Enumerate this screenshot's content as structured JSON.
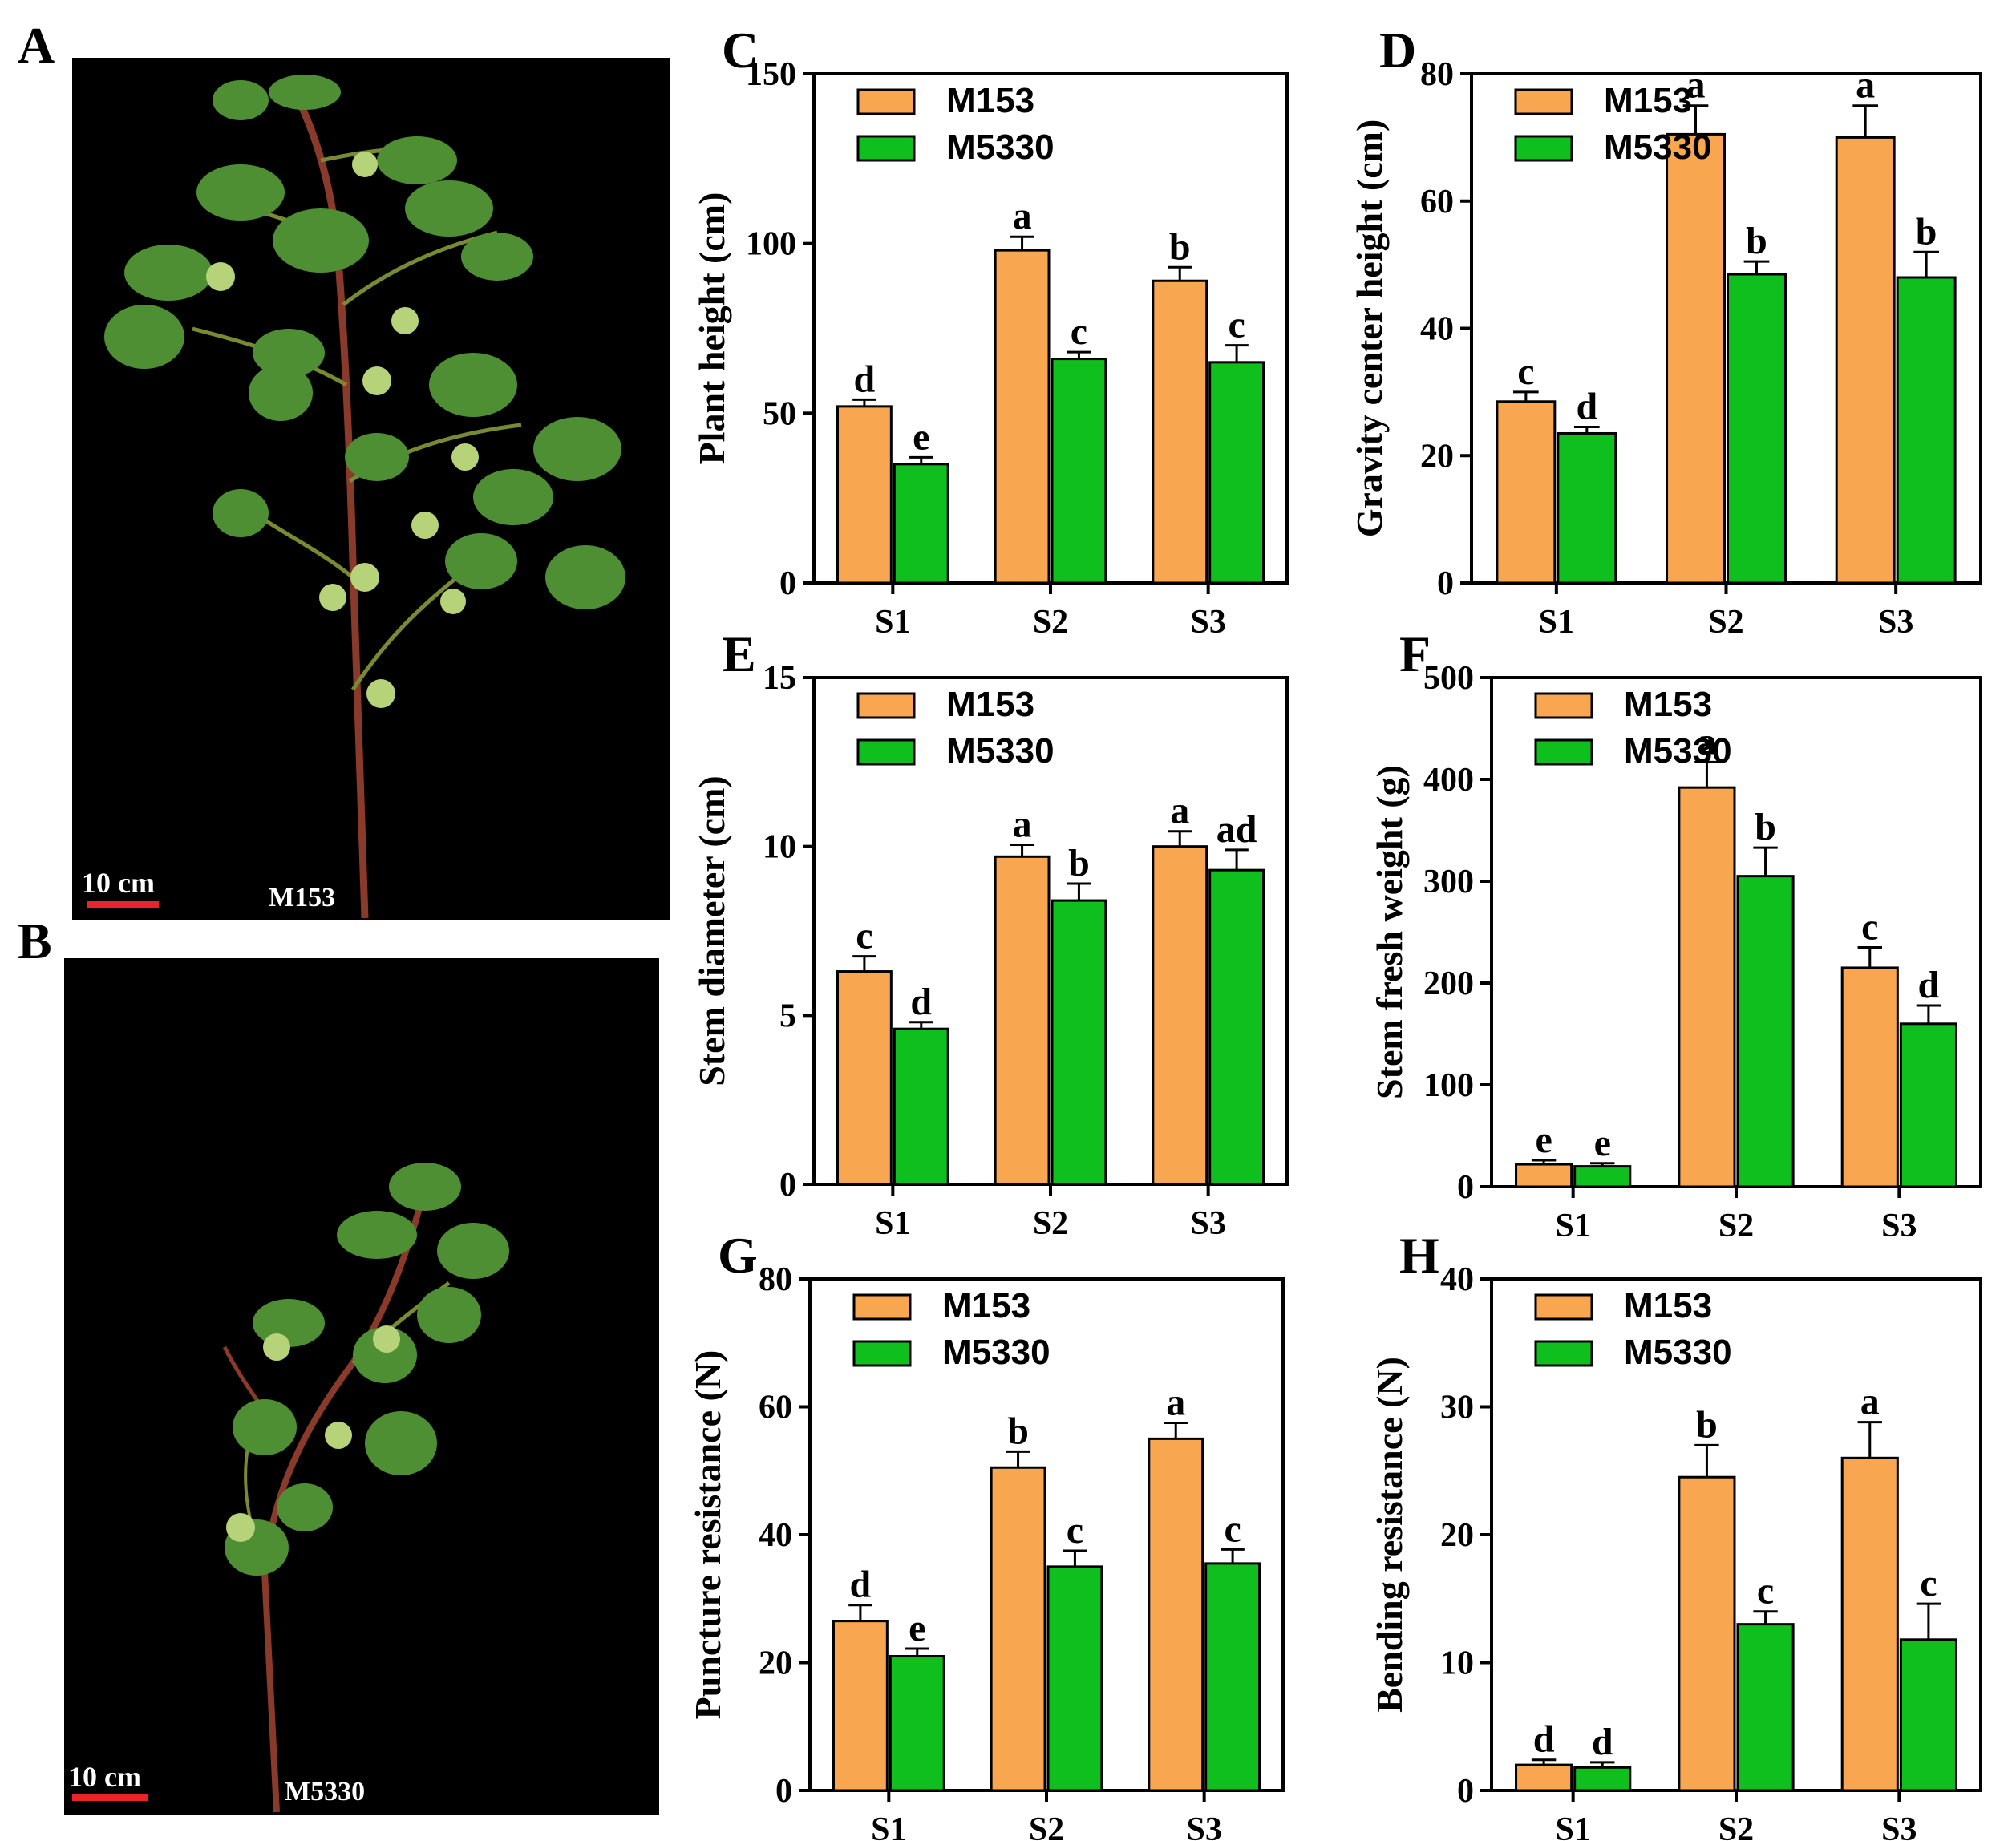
{
  "colors": {
    "M153": "#f8a64f",
    "M5330": "#0ebf1e",
    "axis": "#000000",
    "photo_bg": "#000000",
    "scale_bar": "#e8262a",
    "leaf": "#5a9a3a",
    "boll": "#b6d37a",
    "stem": "#8a3a2a"
  },
  "photos": [
    {
      "letter": "A",
      "scale_label": "10 cm",
      "variety": "M153"
    },
    {
      "letter": "B",
      "scale_label": "10 cm",
      "variety": "M5330"
    }
  ],
  "chart_data": [
    {
      "letter": "C",
      "type": "bar",
      "title": "",
      "ylabel": "Plant height (cm)",
      "xlabel": "",
      "categories": [
        "S1",
        "S2",
        "S3"
      ],
      "ylim": [
        0,
        150
      ],
      "yticks": [
        0,
        50,
        100,
        150
      ],
      "legend": [
        "M153",
        "M5330"
      ],
      "series": [
        {
          "name": "M153",
          "values": [
            52,
            98,
            89
          ],
          "errors": [
            2,
            4,
            4
          ],
          "letters": [
            "d",
            "a",
            "b"
          ]
        },
        {
          "name": "M5330",
          "values": [
            35,
            66,
            65
          ],
          "errors": [
            2,
            2,
            5
          ],
          "letters": [
            "e",
            "c",
            "c"
          ]
        }
      ]
    },
    {
      "letter": "D",
      "type": "bar",
      "title": "",
      "ylabel": "Gravity center height (cm)",
      "xlabel": "",
      "categories": [
        "S1",
        "S2",
        "S3"
      ],
      "ylim": [
        0,
        80
      ],
      "yticks": [
        0,
        20,
        40,
        60,
        80
      ],
      "legend": [
        "M153",
        "M5330"
      ],
      "series": [
        {
          "name": "M153",
          "values": [
            28.5,
            70.5,
            70
          ],
          "errors": [
            1.5,
            4.5,
            5
          ],
          "letters": [
            "c",
            "a",
            "a"
          ]
        },
        {
          "name": "M5330",
          "values": [
            23.5,
            48.5,
            48
          ],
          "errors": [
            1,
            2,
            4
          ],
          "letters": [
            "d",
            "b",
            "b"
          ]
        }
      ]
    },
    {
      "letter": "E",
      "type": "bar",
      "title": "",
      "ylabel": "Stem diameter (cm)",
      "xlabel": "",
      "categories": [
        "S1",
        "S2",
        "S3"
      ],
      "ylim": [
        0,
        15
      ],
      "yticks": [
        0,
        5,
        10,
        15
      ],
      "legend": [
        "M153",
        "M5330"
      ],
      "series": [
        {
          "name": "M153",
          "values": [
            6.3,
            9.7,
            10
          ],
          "errors": [
            0.45,
            0.35,
            0.45
          ],
          "letters": [
            "c",
            "a",
            "a"
          ]
        },
        {
          "name": "M5330",
          "values": [
            4.6,
            8.4,
            9.3
          ],
          "errors": [
            0.2,
            0.5,
            0.6
          ],
          "letters": [
            "d",
            "b",
            "ad"
          ]
        }
      ]
    },
    {
      "letter": "F",
      "type": "bar",
      "title": "",
      "ylabel": "Stem fresh weight (g)",
      "xlabel": "",
      "categories": [
        "S1",
        "S2",
        "S3"
      ],
      "ylim": [
        0,
        500
      ],
      "yticks": [
        0,
        100,
        200,
        300,
        400,
        500
      ],
      "legend": [
        "M153",
        "M5330"
      ],
      "series": [
        {
          "name": "M153",
          "values": [
            22,
            392,
            215
          ],
          "errors": [
            4,
            25,
            20
          ],
          "letters": [
            "e",
            "a",
            "c"
          ]
        },
        {
          "name": "M5330",
          "values": [
            20,
            305,
            160
          ],
          "errors": [
            3,
            28,
            18
          ],
          "letters": [
            "e",
            "b",
            "d"
          ]
        }
      ]
    },
    {
      "letter": "G",
      "type": "bar",
      "title": "",
      "ylabel": "Puncture resistance (N)",
      "xlabel": "",
      "categories": [
        "S1",
        "S2",
        "S3"
      ],
      "ylim": [
        0,
        80
      ],
      "yticks": [
        0,
        20,
        40,
        60,
        80
      ],
      "legend": [
        "M153",
        "M5330"
      ],
      "series": [
        {
          "name": "M153",
          "values": [
            26.5,
            50.5,
            55
          ],
          "errors": [
            2.5,
            2.5,
            2.5
          ],
          "letters": [
            "d",
            "b",
            "a"
          ]
        },
        {
          "name": "M5330",
          "values": [
            21,
            35,
            35.5
          ],
          "errors": [
            1.2,
            2.5,
            2.2
          ],
          "letters": [
            "e",
            "c",
            "c"
          ]
        }
      ]
    },
    {
      "letter": "H",
      "type": "bar",
      "title": "",
      "ylabel": "Bending resistance (N)",
      "xlabel": "",
      "categories": [
        "S1",
        "S2",
        "S3"
      ],
      "ylim": [
        0,
        40
      ],
      "yticks": [
        0,
        10,
        20,
        30,
        40
      ],
      "legend": [
        "M153",
        "M5330"
      ],
      "series": [
        {
          "name": "M153",
          "values": [
            2,
            24.5,
            26
          ],
          "errors": [
            0.4,
            2.5,
            2.8
          ],
          "letters": [
            "d",
            "b",
            "a"
          ]
        },
        {
          "name": "M5330",
          "values": [
            1.8,
            13,
            11.8
          ],
          "errors": [
            0.4,
            1,
            2.8
          ],
          "letters": [
            "d",
            "c",
            "c"
          ]
        }
      ]
    }
  ]
}
